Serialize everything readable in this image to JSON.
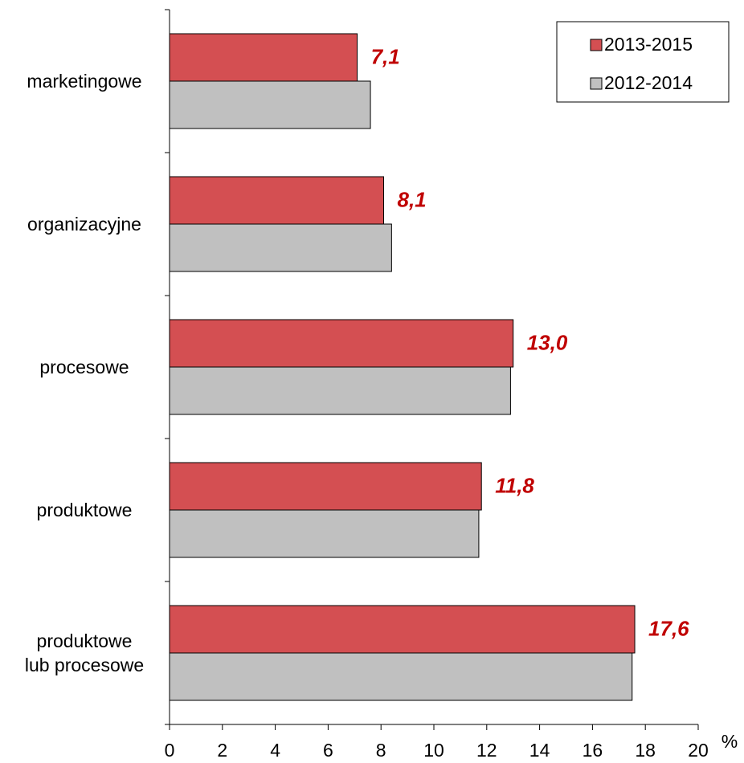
{
  "chart_data": {
    "type": "bar",
    "orientation": "horizontal",
    "categories": [
      "marketingowe",
      "organizacyjne",
      "procesowe",
      "produktowe",
      "produktowe\nlub procesowe"
    ],
    "series": [
      {
        "name": "2013-2015",
        "color": "#d44f52",
        "values": [
          7.1,
          8.1,
          13.0,
          11.8,
          17.6
        ],
        "value_labels": [
          "7,1",
          "8,1",
          "13,0",
          "11,8",
          "17,6"
        ]
      },
      {
        "name": "2012-2014",
        "color": "#c0c0c0",
        "values": [
          7.6,
          8.4,
          12.9,
          11.7,
          17.5
        ]
      }
    ],
    "xlabel": "%",
    "xlim": [
      0,
      20
    ],
    "xticks": [
      0,
      2,
      4,
      6,
      8,
      10,
      12,
      14,
      16,
      18,
      20
    ],
    "legend": "upper right",
    "grid": false
  }
}
